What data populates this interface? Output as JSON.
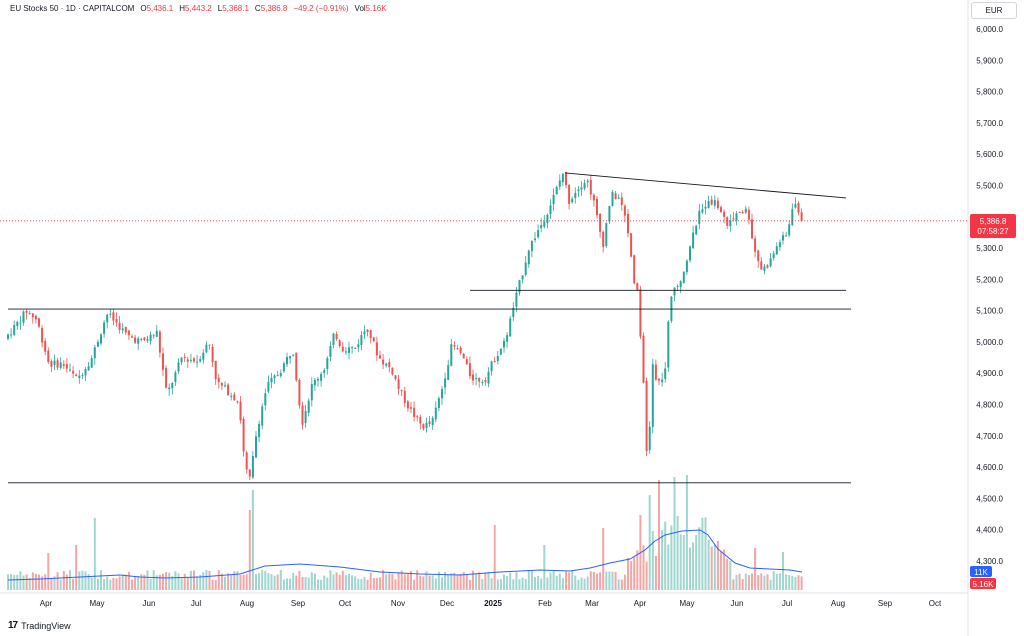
{
  "legend": {
    "symbol": "EU Stocks 50 · 1D · CAPITALCOM",
    "open_label": "O",
    "open": "5,436.1",
    "high_label": "H",
    "high": "5,443.2",
    "low_label": "L",
    "low": "5,368.1",
    "close_label": "C",
    "close": "5,386.8",
    "change": "−49.2 (−0.91%)",
    "vol_label": "Vol",
    "vol": "5.16K"
  },
  "currency": "EUR",
  "price_badges": {
    "last_price": "5,386.8",
    "countdown": "07:58:27",
    "vol_ma": "11K",
    "vol_last": "5.16K"
  },
  "footer": {
    "brand": "TradingView"
  },
  "colors": {
    "up": "#26a69a",
    "down": "#ef5350",
    "vol_up": "#9fd6cf",
    "vol_down": "#f4a5a4",
    "ma": "#2962ff",
    "last_price": "#f23645",
    "vol_ma_badge": "#2962ff"
  },
  "chart_data": {
    "type": "candlestick",
    "title": "EU Stocks 50 · 1D · CAPITALCOM",
    "y_axis": {
      "min": 4250,
      "max": 6050,
      "ticks": [
        "6,000.0",
        "5,900.0",
        "5,800.0",
        "5,700.0",
        "5,600.0",
        "5,500.0",
        "5,400.0",
        "5,300.0",
        "5,200.0",
        "5,100.0",
        "5,000.0",
        "4,900.0",
        "4,800.0",
        "4,700.0",
        "4,600.0",
        "4,500.0",
        "4,400.0",
        "4,300.0"
      ]
    },
    "x_axis": {
      "labels": [
        "Apr",
        "May",
        "Jun",
        "Jul",
        "Aug",
        "Sep",
        "Oct",
        "Nov",
        "Dec",
        "2025",
        "Feb",
        "Mar",
        "Apr",
        "May",
        "Jun",
        "Jul",
        "Aug",
        "Sep",
        "Oct"
      ]
    },
    "price_path": [
      [
        0,
        4880
      ],
      [
        8,
        5010
      ],
      [
        18,
        5050
      ],
      [
        30,
        5100
      ],
      [
        40,
        5070
      ],
      [
        52,
        4930
      ],
      [
        66,
        4930
      ],
      [
        80,
        4880
      ],
      [
        95,
        4950
      ],
      [
        110,
        5090
      ],
      [
        120,
        5060
      ],
      [
        130,
        5020
      ],
      [
        145,
        5000
      ],
      [
        160,
        5030
      ],
      [
        170,
        4830
      ],
      [
        185,
        4950
      ],
      [
        200,
        4940
      ],
      [
        212,
        5000
      ],
      [
        220,
        4870
      ],
      [
        232,
        4840
      ],
      [
        242,
        4810
      ],
      [
        248,
        4600
      ],
      [
        253,
        4560
      ],
      [
        260,
        4720
      ],
      [
        270,
        4860
      ],
      [
        282,
        4900
      ],
      [
        296,
        4980
      ],
      [
        305,
        4740
      ],
      [
        315,
        4860
      ],
      [
        328,
        4920
      ],
      [
        338,
        5030
      ],
      [
        345,
        4980
      ],
      [
        358,
        4980
      ],
      [
        370,
        5050
      ],
      [
        382,
        4950
      ],
      [
        395,
        4910
      ],
      [
        402,
        4850
      ],
      [
        412,
        4790
      ],
      [
        425,
        4730
      ],
      [
        435,
        4740
      ],
      [
        445,
        4850
      ],
      [
        455,
        4990
      ],
      [
        465,
        4960
      ],
      [
        472,
        4900
      ],
      [
        478,
        4880
      ],
      [
        488,
        4880
      ],
      [
        498,
        4950
      ],
      [
        508,
        5000
      ],
      [
        518,
        5130
      ],
      [
        532,
        5300
      ],
      [
        545,
        5380
      ],
      [
        555,
        5450
      ],
      [
        566,
        5540
      ],
      [
        572,
        5450
      ],
      [
        582,
        5500
      ],
      [
        590,
        5520
      ],
      [
        596,
        5460
      ],
      [
        606,
        5310
      ],
      [
        614,
        5470
      ],
      [
        622,
        5460
      ],
      [
        630,
        5380
      ],
      [
        637,
        5200
      ],
      [
        641,
        5160
      ],
      [
        646,
        4900
      ],
      [
        651,
        4560
      ],
      [
        655,
        4940
      ],
      [
        660,
        4860
      ],
      [
        668,
        4900
      ],
      [
        672,
        5080
      ],
      [
        676,
        5170
      ],
      [
        684,
        5200
      ],
      [
        693,
        5300
      ],
      [
        701,
        5400
      ],
      [
        712,
        5460
      ],
      [
        722,
        5430
      ],
      [
        731,
        5370
      ],
      [
        741,
        5420
      ],
      [
        751,
        5420
      ],
      [
        757,
        5300
      ],
      [
        765,
        5230
      ],
      [
        772,
        5250
      ],
      [
        782,
        5320
      ],
      [
        790,
        5340
      ],
      [
        797,
        5460
      ],
      [
        803,
        5387
      ]
    ],
    "volume_ma": [
      [
        8,
        580
      ],
      [
        40,
        579
      ],
      [
        80,
        577
      ],
      [
        120,
        575
      ],
      [
        140,
        577
      ],
      [
        165,
        578
      ],
      [
        200,
        577
      ],
      [
        240,
        574
      ],
      [
        265,
        566
      ],
      [
        300,
        564
      ],
      [
        340,
        567
      ],
      [
        380,
        572
      ],
      [
        420,
        574
      ],
      [
        460,
        575
      ],
      [
        500,
        572
      ],
      [
        540,
        570
      ],
      [
        570,
        571
      ],
      [
        590,
        568
      ],
      [
        610,
        563
      ],
      [
        630,
        559
      ],
      [
        645,
        550
      ],
      [
        655,
        541
      ],
      [
        665,
        535
      ],
      [
        682,
        531
      ],
      [
        700,
        530
      ],
      [
        708,
        535
      ],
      [
        718,
        549
      ],
      [
        735,
        563
      ],
      [
        750,
        568
      ],
      [
        770,
        569
      ],
      [
        790,
        570
      ],
      [
        802,
        572
      ]
    ],
    "volume_spikes": [
      [
        47,
        553
      ],
      [
        77,
        545
      ],
      [
        96,
        518
      ],
      [
        250,
        510
      ],
      [
        252,
        490
      ],
      [
        494,
        525
      ],
      [
        545,
        545
      ],
      [
        603,
        528
      ],
      [
        641,
        515
      ],
      [
        650,
        495
      ],
      [
        658,
        480
      ],
      [
        676,
        477
      ],
      [
        686,
        475
      ],
      [
        716,
        545
      ],
      [
        754,
        548
      ],
      [
        783,
        552
      ]
    ],
    "trend_lines": [
      {
        "name": "resistance",
        "from": [
          565,
          5540
        ],
        "to": [
          846,
          5460
        ]
      },
      {
        "name": "level-1",
        "from": [
          470,
          5165
        ],
        "to": [
          846,
          5165
        ]
      },
      {
        "name": "level-2",
        "from": [
          8,
          5105
        ],
        "to": [
          851,
          5105
        ]
      },
      {
        "name": "level-3",
        "from": [
          8,
          4550
        ],
        "to": [
          851,
          4550
        ]
      }
    ],
    "last_price_line": 5387,
    "legend_placement": "top-left"
  }
}
